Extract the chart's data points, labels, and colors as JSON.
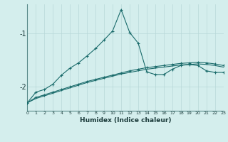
{
  "xlabel": "Humidex (Indice chaleur)",
  "ylabel": "",
  "x": [
    0,
    1,
    2,
    3,
    4,
    5,
    6,
    7,
    8,
    9,
    10,
    11,
    12,
    13,
    14,
    15,
    16,
    17,
    18,
    19,
    20,
    21,
    22,
    23
  ],
  "line1": [
    -2.3,
    -2.1,
    -2.05,
    -1.95,
    -1.78,
    -1.65,
    -1.55,
    -1.42,
    -1.28,
    -1.12,
    -0.95,
    -0.55,
    -0.98,
    -1.18,
    -1.72,
    -1.77,
    -1.77,
    -1.67,
    -1.6,
    -1.58,
    -1.6,
    -1.7,
    -1.73,
    -1.73
  ],
  "line2": [
    -2.3,
    -2.2,
    -2.15,
    -2.1,
    -2.05,
    -2.0,
    -1.95,
    -1.9,
    -1.86,
    -1.82,
    -1.78,
    -1.74,
    -1.7,
    -1.67,
    -1.64,
    -1.62,
    -1.6,
    -1.58,
    -1.56,
    -1.55,
    -1.54,
    -1.55,
    -1.57,
    -1.6
  ],
  "line3": [
    -2.3,
    -2.22,
    -2.17,
    -2.12,
    -2.07,
    -2.02,
    -1.97,
    -1.92,
    -1.88,
    -1.84,
    -1.8,
    -1.76,
    -1.73,
    -1.7,
    -1.67,
    -1.65,
    -1.63,
    -1.61,
    -1.59,
    -1.58,
    -1.57,
    -1.58,
    -1.6,
    -1.63
  ],
  "bg_color": "#d4eeed",
  "line_color": "#1a6b6b",
  "grid_color": "#b8d8d8",
  "xlim": [
    0,
    23
  ],
  "ylim": [
    -2.45,
    -0.45
  ],
  "yticks": [
    -2,
    -1
  ],
  "xticks": [
    0,
    1,
    2,
    3,
    4,
    5,
    6,
    7,
    8,
    9,
    10,
    11,
    12,
    13,
    14,
    15,
    16,
    17,
    18,
    19,
    20,
    21,
    22,
    23
  ]
}
